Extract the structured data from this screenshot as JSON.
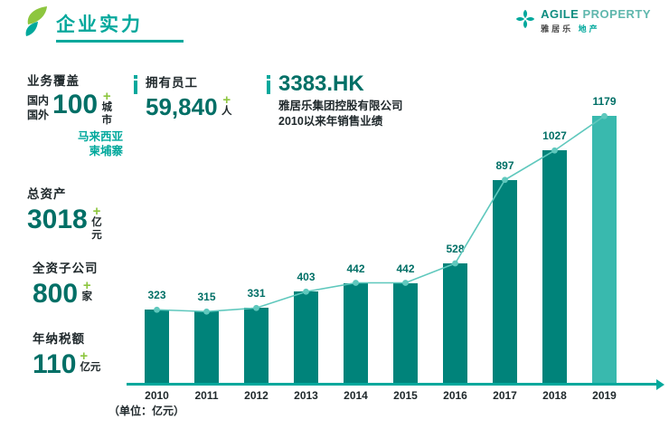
{
  "header": {
    "title": "企业实力",
    "brand": {
      "name_primary": "AGILE",
      "name_secondary": "PROPERTY",
      "sub_primary": "雅居乐",
      "sub_secondary": "地产"
    }
  },
  "stats": {
    "coverage": {
      "label": "业务覆盖",
      "region_domestic": "国内",
      "region_overseas": "国外",
      "value": "100",
      "plus": "+",
      "unit": "城市",
      "overseas": [
        "马来西亚",
        "柬埔寨"
      ]
    },
    "employees": {
      "label": "拥有员工",
      "value": "59,840",
      "plus": "+",
      "unit": "人"
    },
    "stock": {
      "code": "3383.HK",
      "company": "雅居乐集团控股有限公司",
      "note": "2010以来年销售业绩"
    },
    "assets": {
      "label": "总资产",
      "value": "3018",
      "plus": "+",
      "unit": "亿元"
    },
    "subsidiaries": {
      "label": "全资子公司",
      "value": "800",
      "plus": "+",
      "unit": "家"
    },
    "tax": {
      "label": "年纳税额",
      "value": "110",
      "plus": "+",
      "unit": "亿元"
    }
  },
  "chart_data": {
    "type": "bar",
    "title": "2010以来年销售业绩",
    "categories": [
      "2010",
      "2011",
      "2012",
      "2013",
      "2014",
      "2015",
      "2016",
      "2017",
      "2018",
      "2019"
    ],
    "values": [
      323,
      315,
      331,
      403,
      442,
      442,
      528,
      897,
      1027,
      1179
    ],
    "unit_note": "（单位：亿元）",
    "ylim": [
      0,
      1200
    ],
    "grid": false,
    "legend": "none",
    "highlight_last_bar": true
  },
  "colors": {
    "accent": "#00a89c",
    "number": "#006f66",
    "bar": "#00837a",
    "bar_highlight": "#39b9ae",
    "line": "#5fc8bd",
    "green": "#8dc63f",
    "text_dark": "#20292c"
  }
}
